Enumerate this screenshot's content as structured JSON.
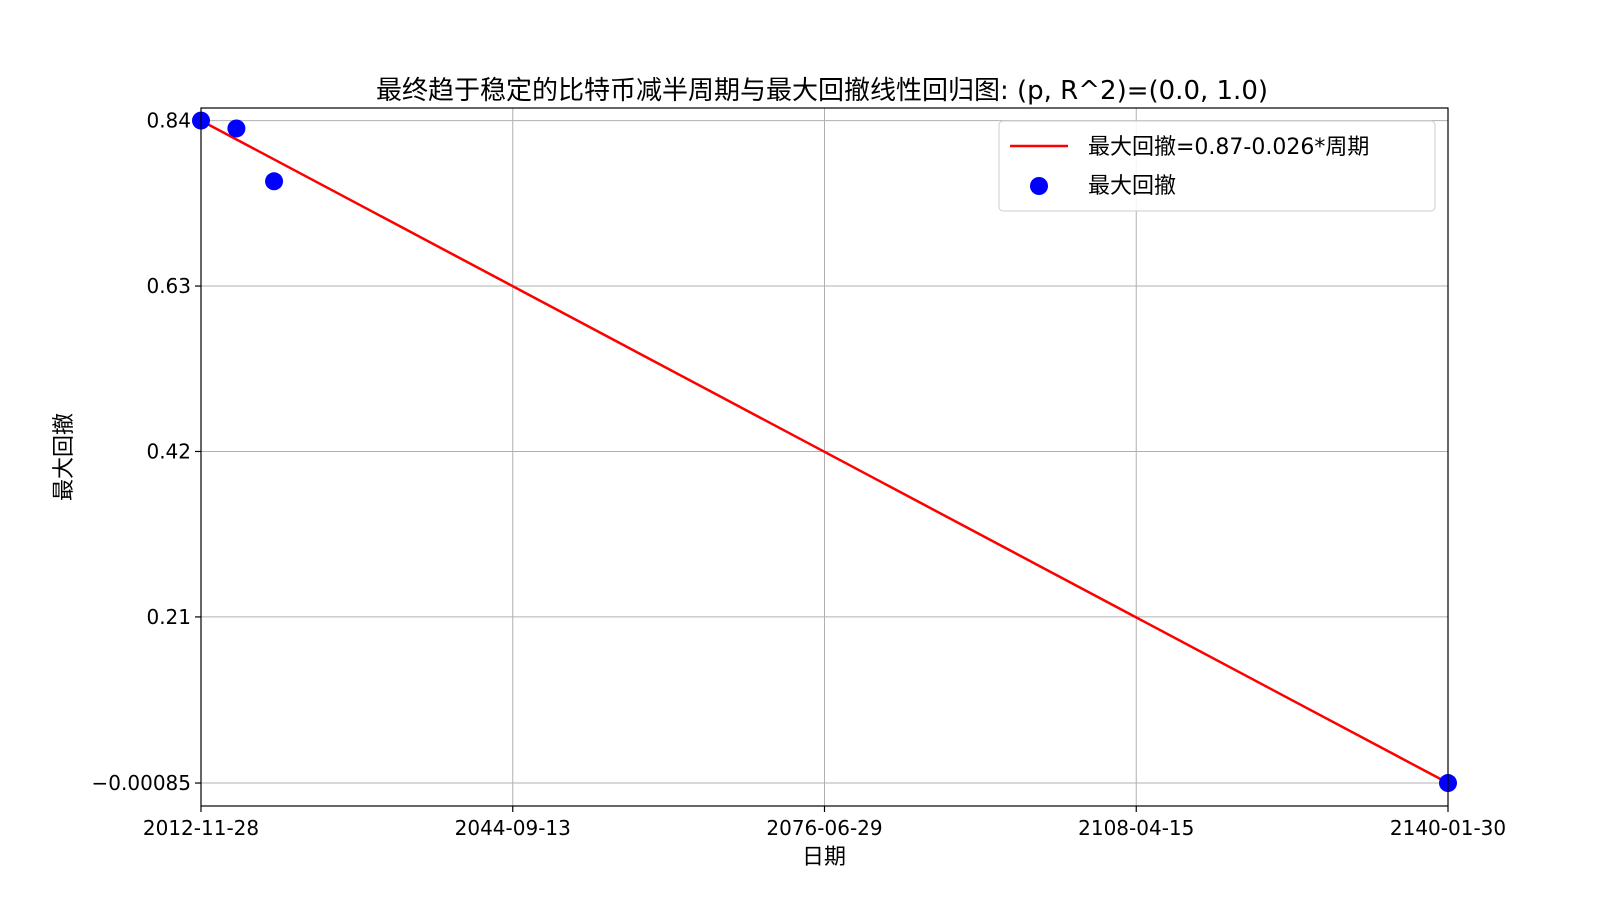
{
  "chart_data": {
    "type": "scatter",
    "title": "最终趋于稳定的比特币减半周期与最大回撤线性回归图: (p, R^2)=(0.0, 1.0)",
    "xlabel": "日期",
    "ylabel": "最大回撤",
    "x_is_date": true,
    "xlim": [
      "2012-11-28",
      "2140-01-30"
    ],
    "ylim": [
      -0.03,
      0.856
    ],
    "x_ticks": [
      "2012-11-28",
      "2044-09-13",
      "2076-06-29",
      "2108-04-15",
      "2140-01-30"
    ],
    "y_ticks": [
      0.84,
      0.63,
      0.42,
      0.21,
      -0.00085
    ],
    "y_tick_labels": [
      "0.84",
      "0.63",
      "0.42",
      "0.21",
      "−0.00085"
    ],
    "grid": true,
    "legend_position": "upper-right",
    "series": [
      {
        "name": "最大回撤=0.87-0.026*周期",
        "kind": "line",
        "color": "#ff0000",
        "x": [
          "2012-11-28",
          "2140-01-30"
        ],
        "y": [
          0.84,
          -0.00085
        ]
      },
      {
        "name": "最大回撤",
        "kind": "scatter",
        "color": "#0000ff",
        "x": [
          "2012-11-28",
          "2016-07-09",
          "2020-05-11",
          "2140-01-30"
        ],
        "y": [
          0.84,
          0.83,
          0.763,
          -0.00085
        ]
      }
    ]
  }
}
